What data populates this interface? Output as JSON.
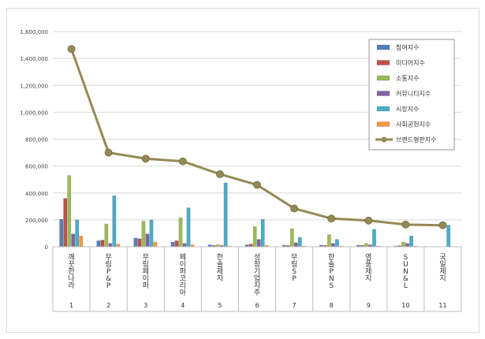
{
  "chart_data": {
    "type": "bar",
    "title": "",
    "xlabel": "",
    "ylabel": "",
    "ylim": [
      0,
      1600000
    ],
    "y_ticks": [
      "0",
      "200,000",
      "400,000",
      "600,000",
      "800,000",
      "1,000,000",
      "1,200,000",
      "1,400,000",
      "1,600,000"
    ],
    "grid": true,
    "legend_position": "top-right",
    "ranks": [
      "1",
      "2",
      "3",
      "4",
      "5",
      "6",
      "7",
      "8",
      "9",
      "10",
      "11"
    ],
    "categories": [
      "깨끗한나라",
      "무림P&P",
      "무림페이퍼",
      "페이퍼코리아",
      "한솔제지",
      "성창기업지주",
      "무림SP",
      "한솔PNS",
      "영풍제지",
      "SUN&L",
      "국일제지"
    ],
    "series": [
      {
        "name": "참여지수",
        "kind": "bar",
        "color": "#4f81bd",
        "values": [
          205000,
          45000,
          65000,
          35000,
          15000,
          15000,
          12000,
          12000,
          12000,
          5000,
          0
        ]
      },
      {
        "name": "미디어지수",
        "kind": "bar",
        "color": "#c0504d",
        "values": [
          360000,
          50000,
          60000,
          45000,
          10000,
          20000,
          10000,
          10000,
          10000,
          8000,
          0
        ]
      },
      {
        "name": "소통지수",
        "kind": "bar",
        "color": "#9bbb59",
        "values": [
          530000,
          170000,
          190000,
          215000,
          15000,
          150000,
          135000,
          90000,
          25000,
          35000,
          0
        ]
      },
      {
        "name": "커뮤니티지수",
        "kind": "bar",
        "color": "#8064a2",
        "values": [
          95000,
          25000,
          95000,
          25000,
          10000,
          55000,
          30000,
          25000,
          15000,
          25000,
          0
        ]
      },
      {
        "name": "시장지수",
        "kind": "bar",
        "color": "#4bacc6",
        "values": [
          200000,
          380000,
          200000,
          290000,
          475000,
          205000,
          70000,
          55000,
          130000,
          80000,
          160000
        ]
      },
      {
        "name": "사회공헌지수",
        "kind": "bar",
        "color": "#f79646",
        "values": [
          80000,
          20000,
          35000,
          15000,
          5000,
          10000,
          5000,
          5000,
          5000,
          5000,
          0
        ]
      },
      {
        "name": "브랜드평판지수",
        "kind": "line",
        "color": "#948a54",
        "values": [
          1470000,
          700000,
          655000,
          635000,
          540000,
          460000,
          285000,
          210000,
          195000,
          165000,
          160000
        ]
      }
    ]
  }
}
